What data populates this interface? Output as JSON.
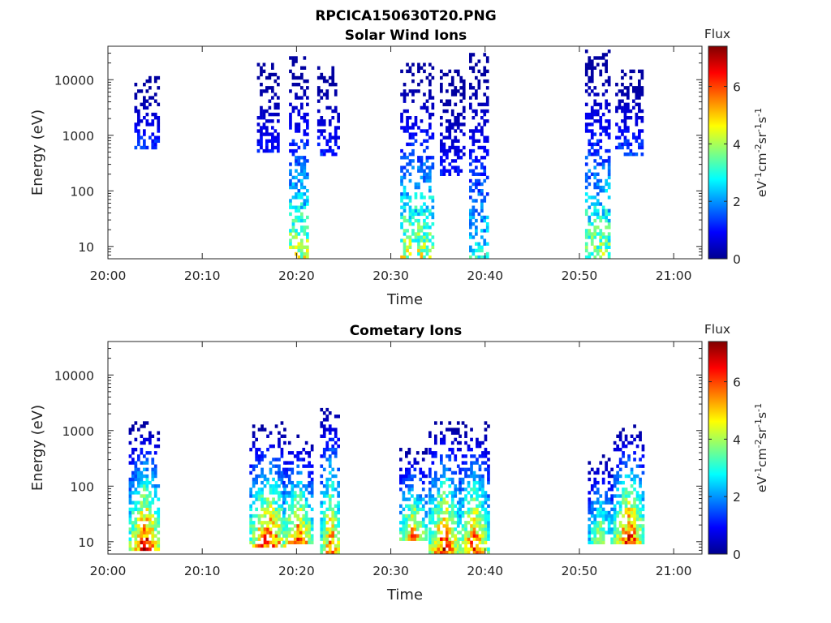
{
  "figure": {
    "title": "RPCICA150630T20.PNG"
  },
  "chart_data": [
    {
      "type": "heatmap",
      "title": "Solar Wind Ions",
      "xlabel": "Time",
      "ylabel": "Energy (eV)",
      "x_ticks": [
        "20:00",
        "20:10",
        "20:20",
        "20:30",
        "20:40",
        "20:50",
        "21:00"
      ],
      "x_range_minutes": [
        0,
        63
      ],
      "y_ticks": [
        "10",
        "100",
        "1000",
        "10000"
      ],
      "y_scale": "log",
      "y_range": [
        6,
        40000
      ],
      "colorbar": {
        "title": "Flux",
        "label": "eV-1cm-2sr-1s-1",
        "ticks": [
          "0",
          "2",
          "4",
          "6"
        ],
        "range": [
          0,
          7.4
        ]
      },
      "activity_bursts": [
        {
          "start_min": 2.8,
          "end_min": 5.3,
          "energy_low_eV": 600,
          "energy_high_eV": 11000,
          "peak_flux": 1.6
        },
        {
          "start_min": 15.8,
          "end_min": 18.2,
          "energy_low_eV": 500,
          "energy_high_eV": 20000,
          "peak_flux": 1.2
        },
        {
          "start_min": 19.2,
          "end_min": 21.2,
          "energy_low_eV": 6,
          "energy_high_eV": 26000,
          "peak_flux": 4.8
        },
        {
          "start_min": 22.2,
          "end_min": 24.4,
          "energy_low_eV": 400,
          "energy_high_eV": 18000,
          "peak_flux": 1.4
        },
        {
          "start_min": 31.0,
          "end_min": 34.3,
          "energy_low_eV": 6,
          "energy_high_eV": 20000,
          "peak_flux": 4.9
        },
        {
          "start_min": 35.2,
          "end_min": 37.6,
          "energy_low_eV": 200,
          "energy_high_eV": 15000,
          "peak_flux": 1.2
        },
        {
          "start_min": 38.3,
          "end_min": 40.2,
          "energy_low_eV": 6,
          "energy_high_eV": 32000,
          "peak_flux": 3.3
        },
        {
          "start_min": 50.6,
          "end_min": 53.2,
          "energy_low_eV": 6,
          "energy_high_eV": 35000,
          "peak_flux": 4.5
        },
        {
          "start_min": 53.8,
          "end_min": 56.5,
          "energy_low_eV": 400,
          "energy_high_eV": 15000,
          "peak_flux": 1.8
        }
      ]
    },
    {
      "type": "heatmap",
      "title": "Cometary Ions",
      "xlabel": "Time",
      "ylabel": "Energy (eV)",
      "x_ticks": [
        "20:00",
        "20:10",
        "20:20",
        "20:30",
        "20:40",
        "20:50",
        "21:00"
      ],
      "x_range_minutes": [
        0,
        63
      ],
      "y_ticks": [
        "10",
        "100",
        "1000",
        "10000"
      ],
      "y_scale": "log",
      "y_range": [
        6,
        40000
      ],
      "colorbar": {
        "title": "Flux",
        "label": "eV-1cm-2sr-1s-1",
        "ticks": [
          "0",
          "2",
          "4",
          "6"
        ],
        "range": [
          0,
          7.4
        ]
      },
      "activity_bursts": [
        {
          "start_min": 2.2,
          "end_min": 5.4,
          "energy_low_eV": 7,
          "energy_high_eV": 1500,
          "peak_flux": 7.3
        },
        {
          "start_min": 15.0,
          "end_min": 18.8,
          "energy_low_eV": 8,
          "energy_high_eV": 1400,
          "peak_flux": 7.2
        },
        {
          "start_min": 18.5,
          "end_min": 21.6,
          "energy_low_eV": 9,
          "energy_high_eV": 900,
          "peak_flux": 6.8
        },
        {
          "start_min": 22.5,
          "end_min": 24.6,
          "energy_low_eV": 6,
          "energy_high_eV": 3500,
          "peak_flux": 6.5
        },
        {
          "start_min": 30.9,
          "end_min": 33.6,
          "energy_low_eV": 10,
          "energy_high_eV": 500,
          "peak_flux": 6.5
        },
        {
          "start_min": 34.0,
          "end_min": 37.1,
          "energy_low_eV": 6,
          "energy_high_eV": 1500,
          "peak_flux": 7.3
        },
        {
          "start_min": 37.2,
          "end_min": 40.2,
          "energy_low_eV": 6,
          "energy_high_eV": 1400,
          "peak_flux": 7.0
        },
        {
          "start_min": 50.9,
          "end_min": 53.4,
          "energy_low_eV": 9,
          "energy_high_eV": 400,
          "peak_flux": 5.0
        },
        {
          "start_min": 53.6,
          "end_min": 56.7,
          "energy_low_eV": 9,
          "energy_high_eV": 1300,
          "peak_flux": 7.2
        }
      ]
    }
  ]
}
